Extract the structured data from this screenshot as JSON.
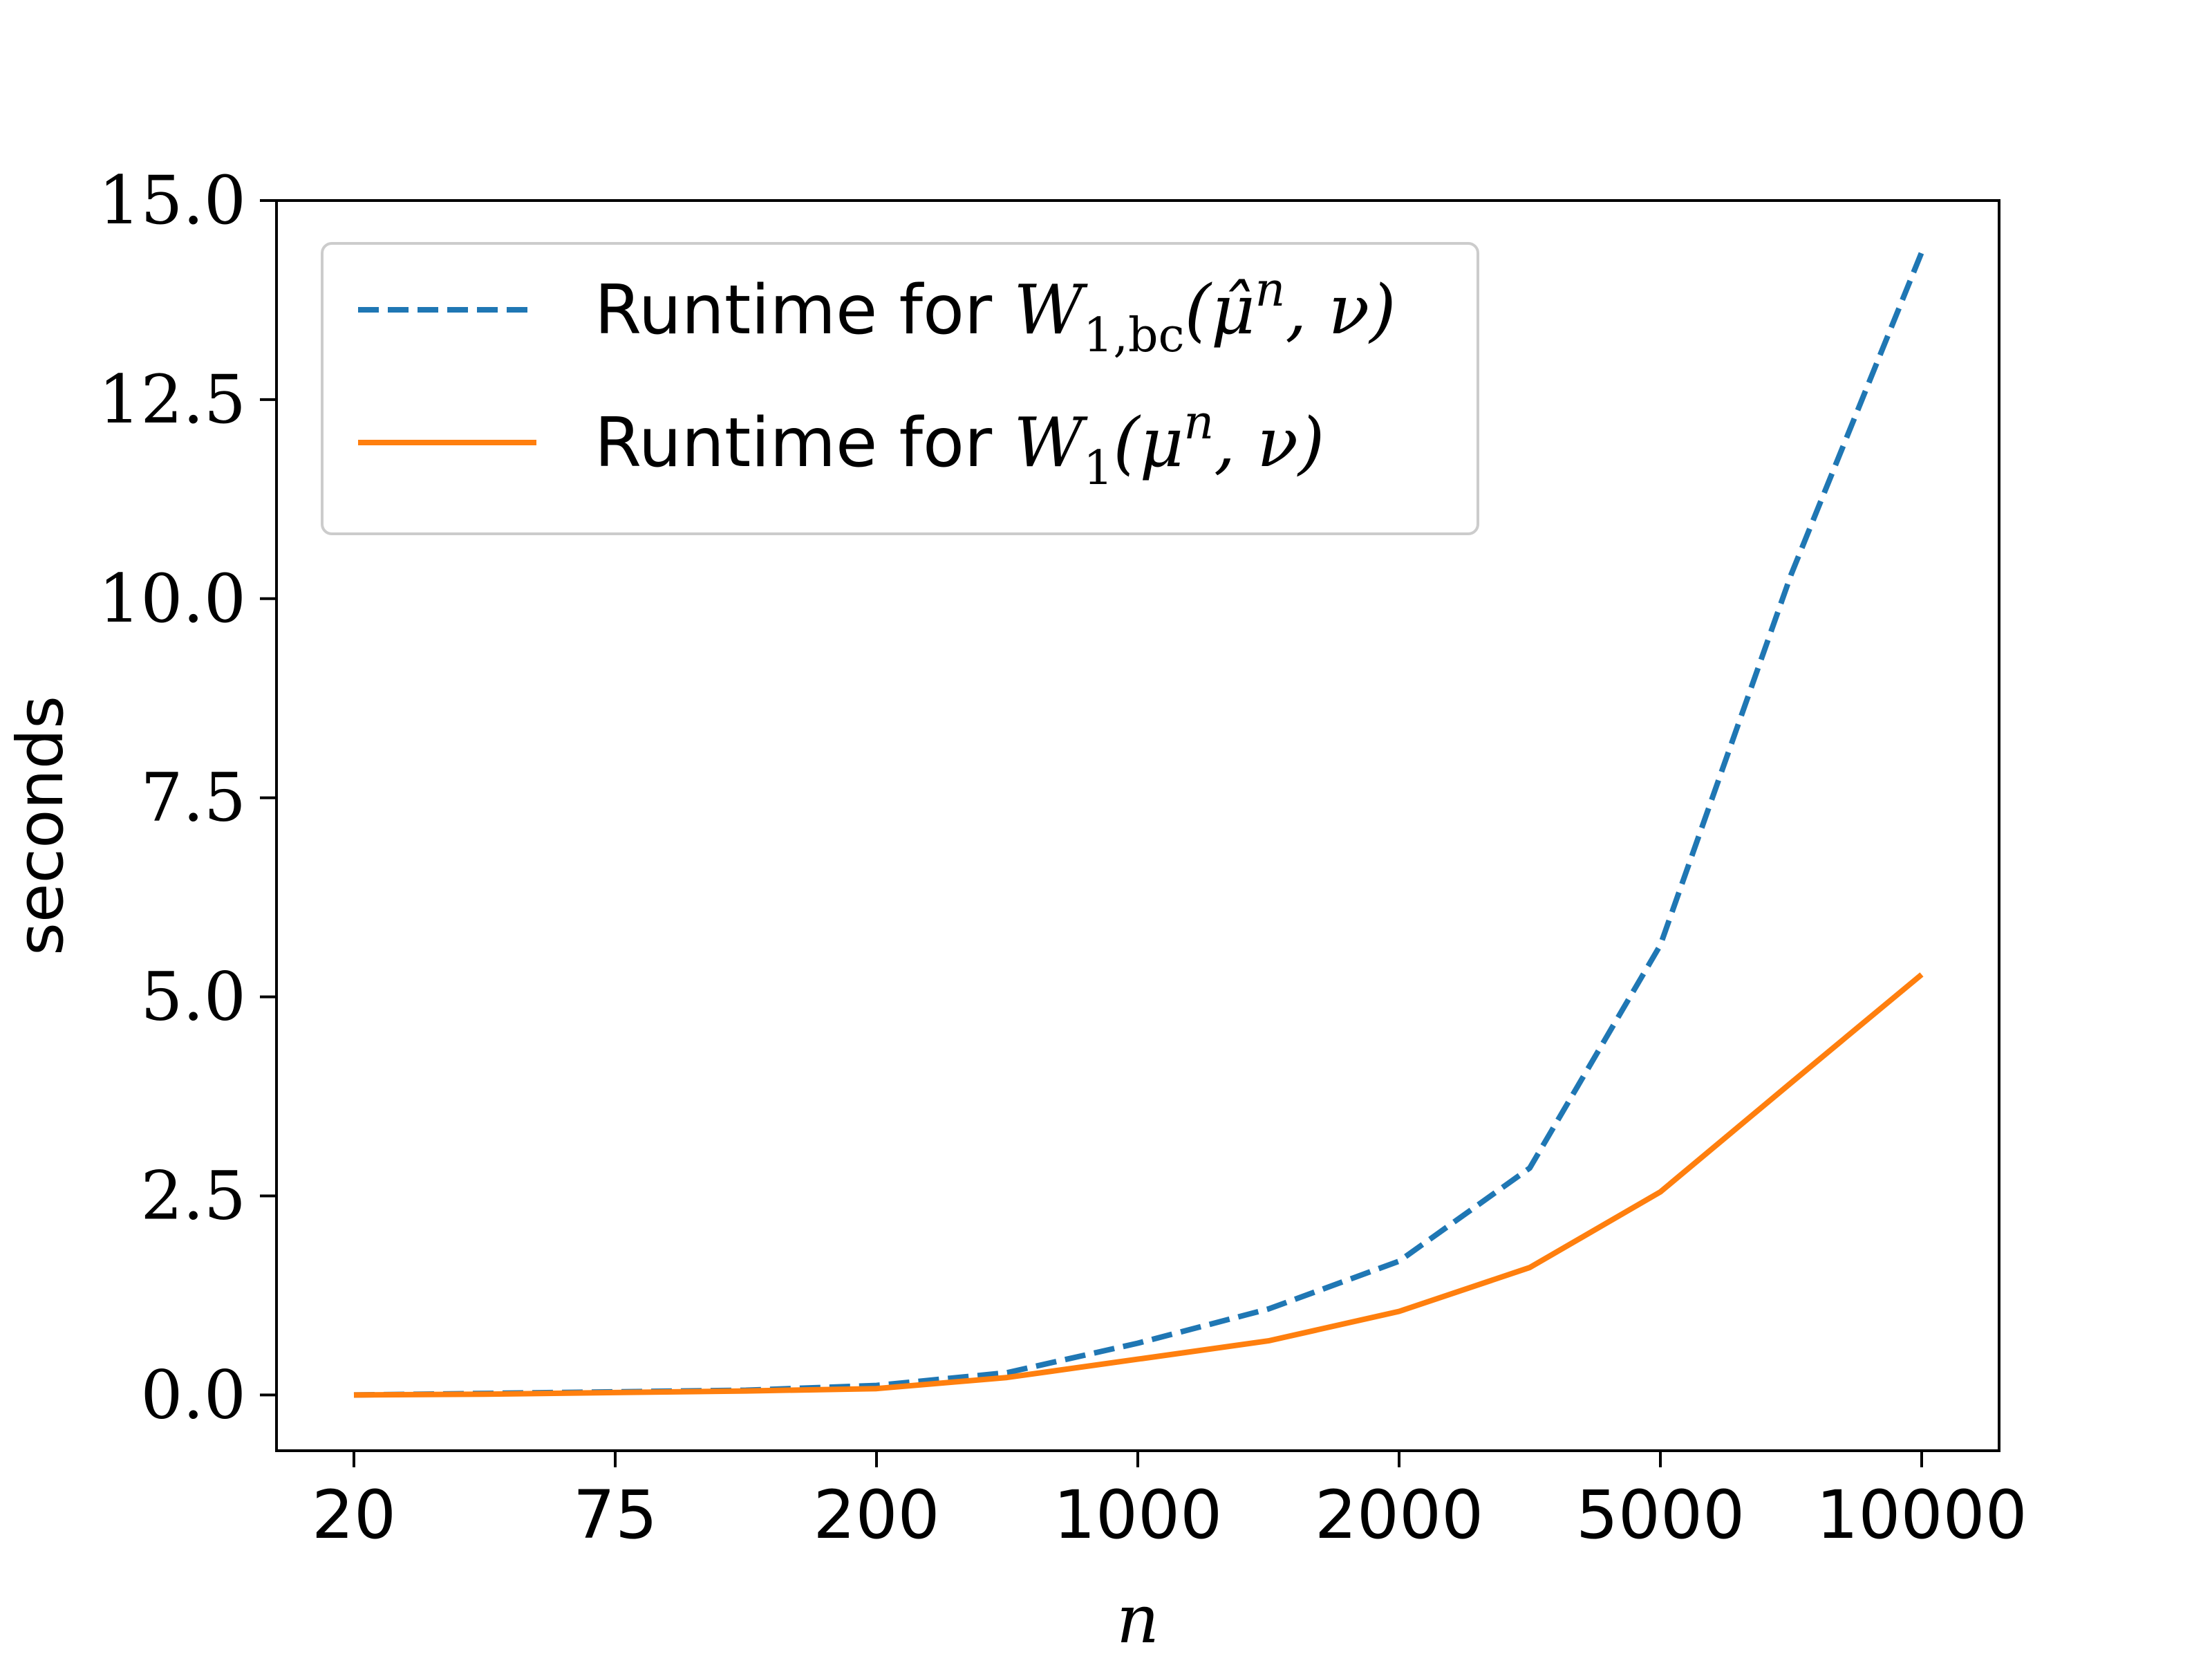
{
  "chart_data": {
    "type": "line",
    "x_is_categorical": true,
    "categories": [
      "20",
      "",
      "75",
      "",
      "200",
      "",
      "1000",
      "",
      "2000",
      "",
      "5000",
      "",
      "10000"
    ],
    "x_tick_labels": [
      "20",
      "75",
      "200",
      "1000",
      "2000",
      "5000",
      "10000"
    ],
    "xlabel": "n",
    "ylabel": "seconds",
    "ylim": [
      -0.7,
      15.0
    ],
    "y_ticks": [
      "0.0",
      "2.5",
      "5.0",
      "7.5",
      "10.0",
      "12.5",
      "15.0"
    ],
    "grid": false,
    "legend_position": "top-left",
    "series": [
      {
        "name": "Runtime for W_{1,bc}(μ̂^n, ν)",
        "style": "dashed",
        "color": "#1f77b4",
        "values": [
          0.0,
          0.02,
          0.04,
          0.06,
          0.12,
          0.28,
          0.65,
          1.08,
          1.68,
          2.85,
          5.65,
          10.3,
          14.35
        ]
      },
      {
        "name": "Runtime for W_1(μ^n, ν)",
        "style": "solid",
        "color": "#ff7f0e",
        "values": [
          0.0,
          0.01,
          0.03,
          0.05,
          0.08,
          0.22,
          0.45,
          0.68,
          1.05,
          1.6,
          2.55,
          3.92,
          5.28
        ]
      }
    ],
    "legend": {
      "entries": [
        {
          "prefix": "Runtime for ",
          "math_main": "W",
          "math_sub": "1,bc",
          "math_args": "(μ̂",
          "math_sup": "n",
          "math_tail": ", ν)"
        },
        {
          "prefix": "Runtime for ",
          "math_main": "W",
          "math_sub": "1",
          "math_args": "(μ",
          "math_sup": "n",
          "math_tail": ", ν)"
        }
      ]
    }
  }
}
